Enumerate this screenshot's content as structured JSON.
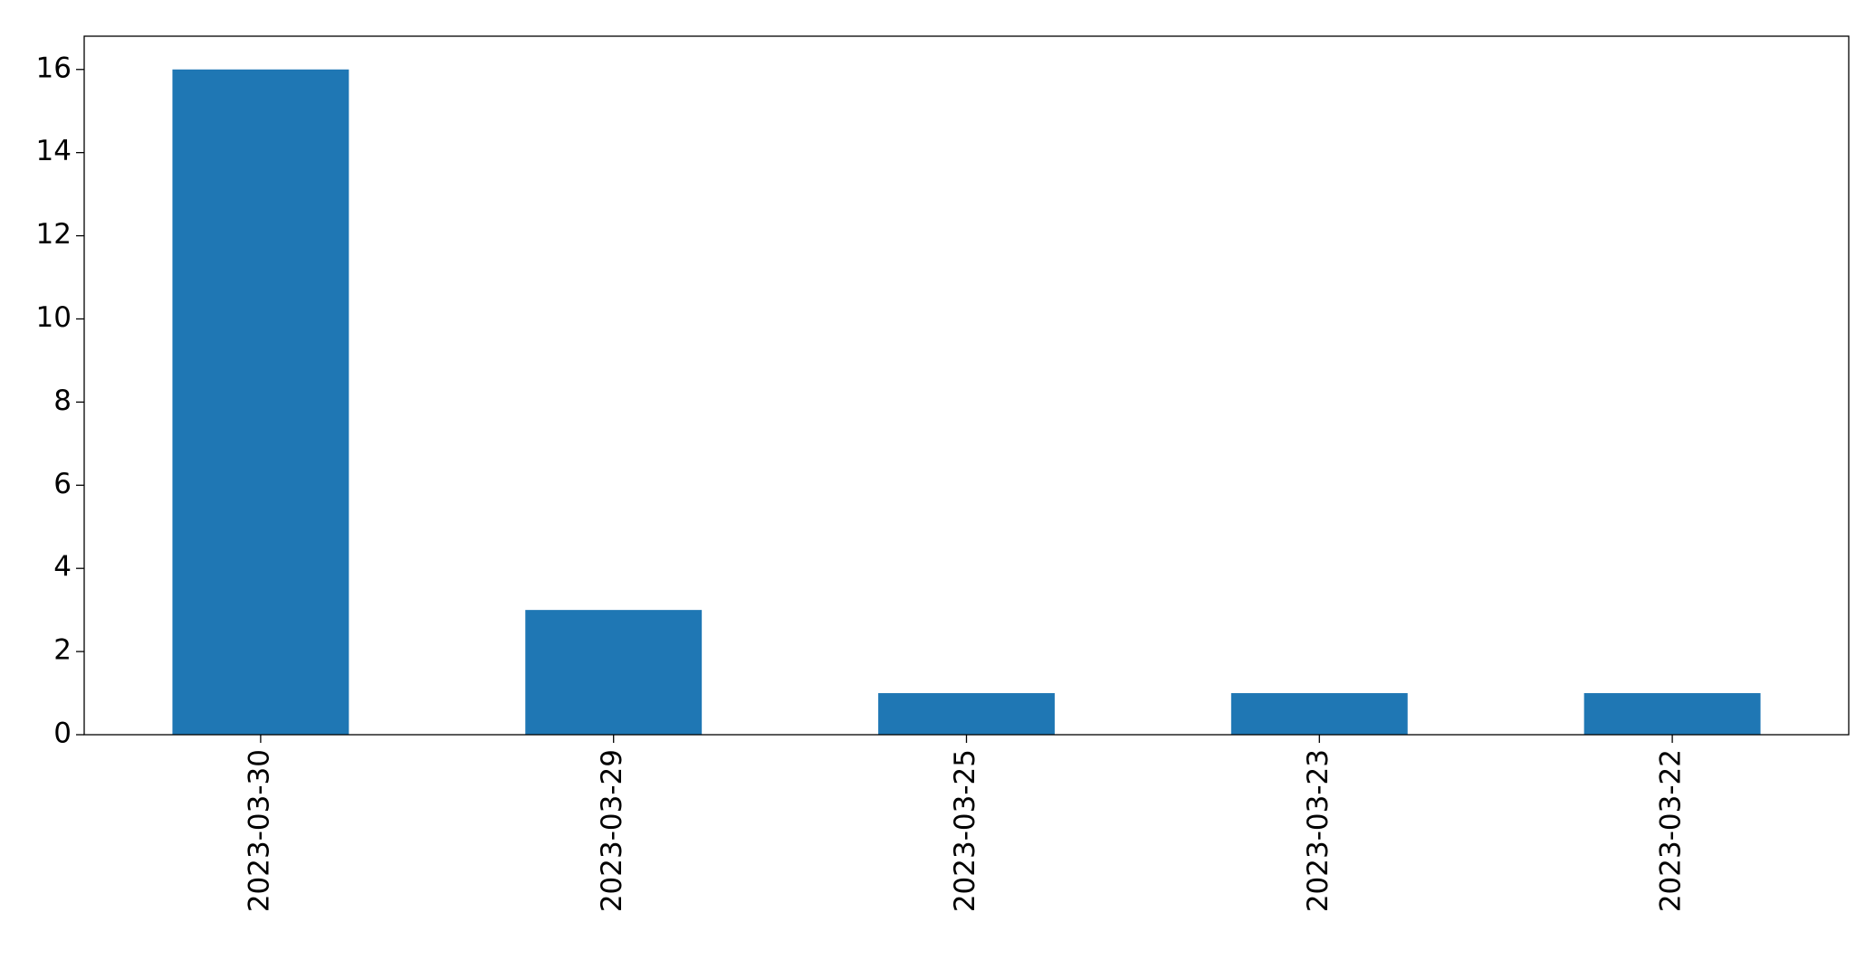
{
  "chart_data": {
    "type": "bar",
    "categories": [
      "2023-03-30",
      "2023-03-29",
      "2023-03-25",
      "2023-03-23",
      "2023-03-22"
    ],
    "values": [
      16,
      3,
      1,
      1,
      1
    ],
    "color": "#1f77b4",
    "ylim": [
      0,
      16.8
    ],
    "yticks": [
      0,
      2,
      4,
      6,
      8,
      10,
      12,
      14,
      16
    ],
    "grid": false
  }
}
